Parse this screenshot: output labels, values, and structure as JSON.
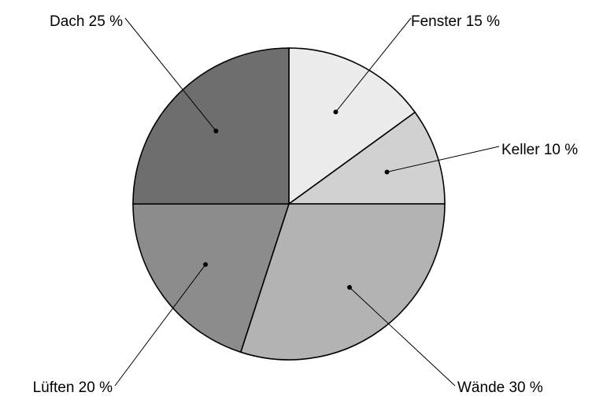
{
  "chart_data": {
    "type": "pie",
    "title": "",
    "start_direction": "up",
    "direction": "clockwise",
    "unit": "%",
    "slices": [
      {
        "label": "Fenster",
        "value": 15,
        "text": "Fenster 15 %",
        "color": "#ececec"
      },
      {
        "label": "Keller",
        "value": 10,
        "text": "Keller 10 %",
        "color": "#d1d1d1"
      },
      {
        "label": "Wände",
        "value": 30,
        "text": "Wände 30 %",
        "color": "#b3b3b3"
      },
      {
        "label": "Lüften",
        "value": 20,
        "text": "Lüften 20 %",
        "color": "#8c8c8c"
      },
      {
        "label": "Dach",
        "value": 25,
        "text": "Dach 25 %",
        "color": "#6e6e6e"
      }
    ]
  }
}
